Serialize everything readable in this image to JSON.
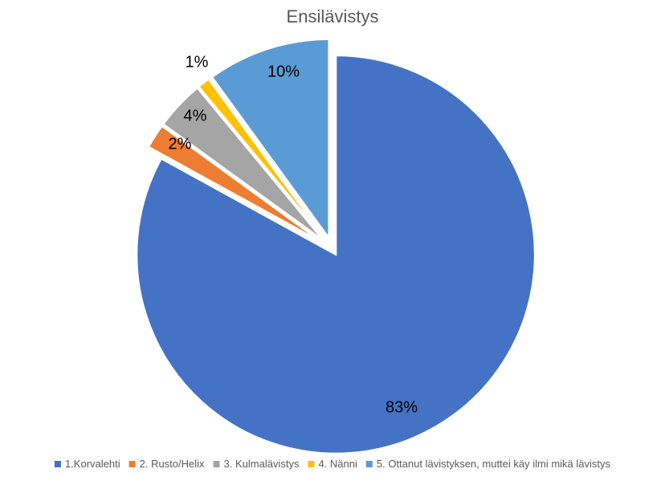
{
  "chart_data": {
    "type": "pie",
    "title": "Ensilävistys",
    "categories": [
      "1.Korvalehti",
      "2. Rusto/Helix",
      "3. Kulmalävistys",
      "4. Nänni",
      "5. Ottanut lävistyksen, muttei käy ilmi mikä lävistys"
    ],
    "values": [
      83,
      2,
      4,
      1,
      10
    ],
    "value_labels": [
      "83%",
      "2%",
      "4%",
      "1%",
      "10%"
    ],
    "colors": [
      "#4472C4",
      "#ED7D31",
      "#A5A5A5",
      "#FFC000",
      "#5B9BD5"
    ],
    "exploded": true,
    "start_angle_deg": 0,
    "direction": "clockwise",
    "legend_position": "bottom"
  }
}
